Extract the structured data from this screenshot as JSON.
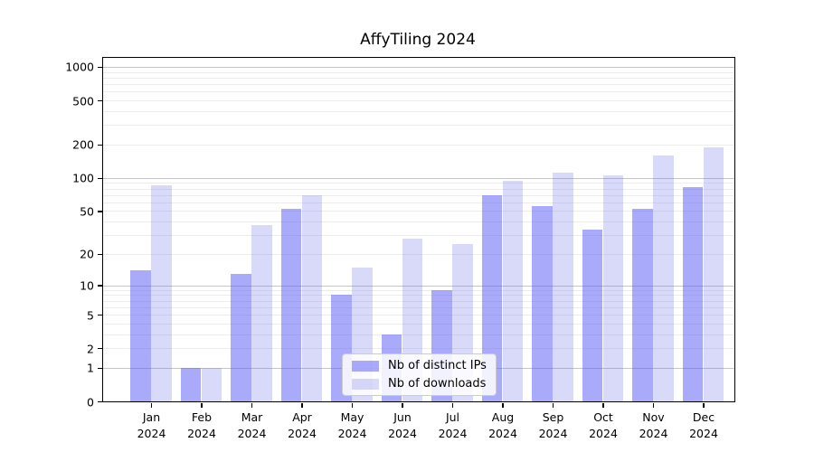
{
  "title": "AffyTiling 2024",
  "chart_data": {
    "type": "bar",
    "title": "AffyTiling 2024",
    "categories": [
      "Jan 2024",
      "Feb 2024",
      "Mar 2024",
      "Apr 2024",
      "May 2024",
      "Jun 2024",
      "Jul 2024",
      "Aug 2024",
      "Sep 2024",
      "Oct 2024",
      "Nov 2024",
      "Dec 2024"
    ],
    "months": [
      "Jan",
      "Feb",
      "Mar",
      "Apr",
      "May",
      "Jun",
      "Jul",
      "Aug",
      "Sep",
      "Oct",
      "Nov",
      "Dec"
    ],
    "year": "2024",
    "series": [
      {
        "name": "Nb of distinct IPs",
        "color": "rgba(85,85,245,0.5)",
        "values": [
          14,
          1,
          13,
          52,
          8,
          3,
          9,
          70,
          55,
          34,
          52,
          82
        ]
      },
      {
        "name": "Nb of downloads",
        "color": "rgba(103,103,231,0.25)",
        "values": [
          85,
          1,
          37,
          70,
          15,
          28,
          25,
          95,
          112,
          106,
          160,
          190
        ]
      }
    ],
    "yscale": "log1p",
    "yticks": [
      0,
      1,
      2,
      5,
      10,
      20,
      50,
      100,
      200,
      500,
      1000
    ],
    "minor_gridlines": [
      2,
      3,
      4,
      5,
      6,
      7,
      8,
      9,
      20,
      30,
      40,
      50,
      60,
      70,
      80,
      90,
      200,
      300,
      400,
      500,
      600,
      700,
      800,
      900
    ],
    "major_gridlines": [
      1,
      10,
      100,
      1000
    ],
    "ylim": [
      0,
      1200
    ],
    "xlabel": "",
    "ylabel": "",
    "grid": true,
    "legend_position": "lower center"
  },
  "legend": {
    "items": [
      {
        "label": "Nb of distinct IPs",
        "color": "rgba(85,85,245,0.5)"
      },
      {
        "label": "Nb of downloads",
        "color": "rgba(103,103,231,0.25)"
      }
    ]
  }
}
